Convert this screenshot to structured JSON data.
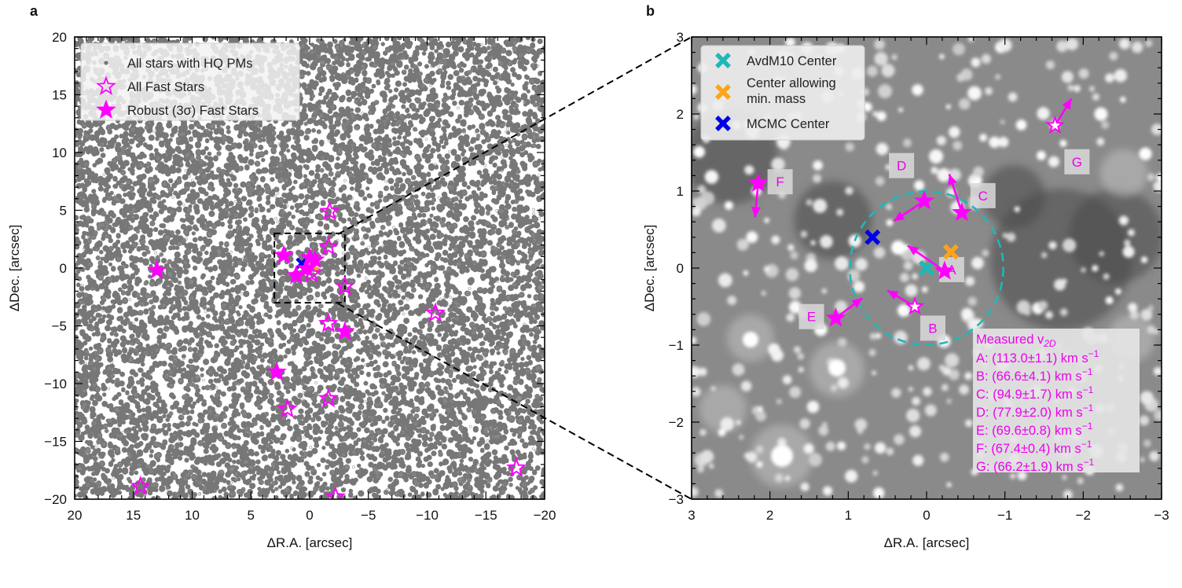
{
  "panels": {
    "a": {
      "label": "a"
    },
    "b": {
      "label": "b"
    }
  },
  "colors": {
    "magenta": "#ff00ff",
    "cyan": "#1fb8b8",
    "orange": "#ffa31a",
    "blue": "#0000e6",
    "stars_gray": "#777777"
  },
  "chart_data": [
    {
      "type": "scatter",
      "panel": "a",
      "xlabel": "ΔR.A. [arcsec]",
      "ylabel": "ΔDec. [arcsec]",
      "xlim": [
        20,
        -20
      ],
      "ylim": [
        -20,
        20
      ],
      "xticks": [
        "20",
        "15",
        "10",
        "5",
        "0",
        "−5",
        "−10",
        "−15",
        "−20"
      ],
      "xtick_values": [
        20,
        15,
        10,
        5,
        0,
        -5,
        -10,
        -15,
        -20
      ],
      "yticks": [
        "20",
        "15",
        "10",
        "5",
        "0",
        "−5",
        "−10",
        "−15",
        "−20"
      ],
      "ytick_values": [
        20,
        15,
        10,
        5,
        0,
        -5,
        -10,
        -15,
        -20
      ],
      "legend": {
        "position": "top-left",
        "entries": [
          {
            "label": "All stars with HQ PMs",
            "marker": "dot"
          },
          {
            "label": "All Fast Stars",
            "marker": "open-star"
          },
          {
            "label": "Robust (3σ) Fast Stars",
            "marker": "filled-star"
          }
        ]
      },
      "zoom_box": {
        "x": [
          3,
          -3
        ],
        "y": [
          -3,
          3
        ]
      },
      "series": [
        {
          "name": "Robust (3σ) Fast Stars",
          "points": [
            {
              "x": 13.0,
              "y": -0.2
            },
            {
              "x": 2.2,
              "y": 1.1
            },
            {
              "x": 0.0,
              "y": 0.9
            },
            {
              "x": -0.45,
              "y": 0.7
            },
            {
              "x": 1.15,
              "y": -0.65
            },
            {
              "x": 0.25,
              "y": -0.05
            },
            {
              "x": -3.0,
              "y": -5.5
            },
            {
              "x": 2.8,
              "y": -9.0
            }
          ]
        },
        {
          "name": "All Fast Stars",
          "points": [
            {
              "x": -1.7,
              "y": 4.9
            },
            {
              "x": -1.6,
              "y": 1.85
            },
            {
              "x": -3.0,
              "y": -1.6
            },
            {
              "x": -10.7,
              "y": -3.9
            },
            {
              "x": -1.6,
              "y": -4.8
            },
            {
              "x": 1.9,
              "y": -12.2
            },
            {
              "x": -1.6,
              "y": -11.3
            },
            {
              "x": 14.4,
              "y": -18.9
            },
            {
              "x": -2.2,
              "y": -19.8
            },
            {
              "x": -17.6,
              "y": -17.3
            },
            {
              "x": -0.15,
              "y": -0.5
            }
          ]
        }
      ],
      "centers": [
        {
          "name": "MCMC Center",
          "x": 0.69,
          "y": 0.4
        },
        {
          "name": "Center allowing min. mass",
          "x": -0.31,
          "y": 0.21
        }
      ]
    },
    {
      "type": "scatter",
      "panel": "b",
      "xlabel": "ΔR.A. [arcsec]",
      "ylabel": "ΔDec. [arcsec]",
      "xlim": [
        3,
        -3
      ],
      "ylim": [
        -3,
        3
      ],
      "xticks": [
        "3",
        "2",
        "1",
        "0",
        "−1",
        "−2",
        "−3"
      ],
      "xtick_values": [
        3,
        2,
        1,
        0,
        -1,
        -2,
        -3
      ],
      "yticks": [
        "3",
        "2",
        "1",
        "0",
        "−1",
        "−2",
        "−3"
      ],
      "ytick_values": [
        3,
        2,
        1,
        0,
        -1,
        -2,
        -3
      ],
      "legend": {
        "position": "top-left",
        "entries": [
          {
            "label": "AvdM10 Center",
            "color": "#1fb8b8"
          },
          {
            "label": "Center allowing\nmin. mass",
            "line1": "Center allowing",
            "line2": "min. mass",
            "color": "#ffa31a"
          },
          {
            "label": "MCMC Center",
            "color": "#0000e6"
          }
        ]
      },
      "centers": [
        {
          "name": "AvdM10 Center",
          "x": 0.0,
          "y": 0.0,
          "color": "#1fb8b8"
        },
        {
          "name": "Center allowing min. mass",
          "x": -0.31,
          "y": 0.21,
          "color": "#ffa31a"
        },
        {
          "name": "MCMC Center",
          "x": 0.69,
          "y": 0.4,
          "color": "#0000e6"
        }
      ],
      "circle": {
        "x": 0.0,
        "y": 0.0,
        "r": 0.98
      },
      "fast_stars": [
        {
          "id": "A",
          "x": -0.23,
          "y": -0.04,
          "filled": true,
          "dx": 0.47,
          "dy": 0.33,
          "label_x": -0.32,
          "label_y": -0.02
        },
        {
          "id": "B",
          "x": 0.15,
          "y": -0.5,
          "filled": false,
          "dx": 0.35,
          "dy": 0.21,
          "label_x": -0.08,
          "label_y": -0.78
        },
        {
          "id": "C",
          "x": -0.45,
          "y": 0.72,
          "filled": true,
          "dx": 0.16,
          "dy": 0.5,
          "label_x": -0.72,
          "label_y": 0.94
        },
        {
          "id": "D",
          "x": 0.03,
          "y": 0.87,
          "filled": true,
          "dx": 0.39,
          "dy": -0.26,
          "label_x": 0.32,
          "label_y": 1.33
        },
        {
          "id": "E",
          "x": 1.16,
          "y": -0.65,
          "filled": true,
          "dx": -0.34,
          "dy": 0.26,
          "label_x": 1.47,
          "label_y": -0.63
        },
        {
          "id": "F",
          "x": 2.15,
          "y": 1.1,
          "filled": true,
          "dx": 0.04,
          "dy": -0.44,
          "label_x": 1.87,
          "label_y": 1.12
        },
        {
          "id": "G",
          "x": -1.64,
          "y": 1.85,
          "filled": false,
          "dx": -0.21,
          "dy": 0.35,
          "label_x": -1.92,
          "label_y": 1.38
        }
      ],
      "velocity_box": {
        "title": "Measured v",
        "title_sub": "2D",
        "unit": "km s",
        "unit_sup": "−1",
        "rows": [
          {
            "id": "A",
            "text": "A: (113.0±1.1) km s"
          },
          {
            "id": "B",
            "text": "B: (66.6±4.1) km s"
          },
          {
            "id": "C",
            "text": "C: (94.9±1.7) km s"
          },
          {
            "id": "D",
            "text": "D: (77.9±2.0) km s"
          },
          {
            "id": "E",
            "text": "E: (69.6±0.8) km s"
          },
          {
            "id": "F",
            "text": "F: (67.4±0.4) km s"
          },
          {
            "id": "G",
            "text": "G: (66.2±1.9) km s"
          }
        ]
      }
    }
  ]
}
